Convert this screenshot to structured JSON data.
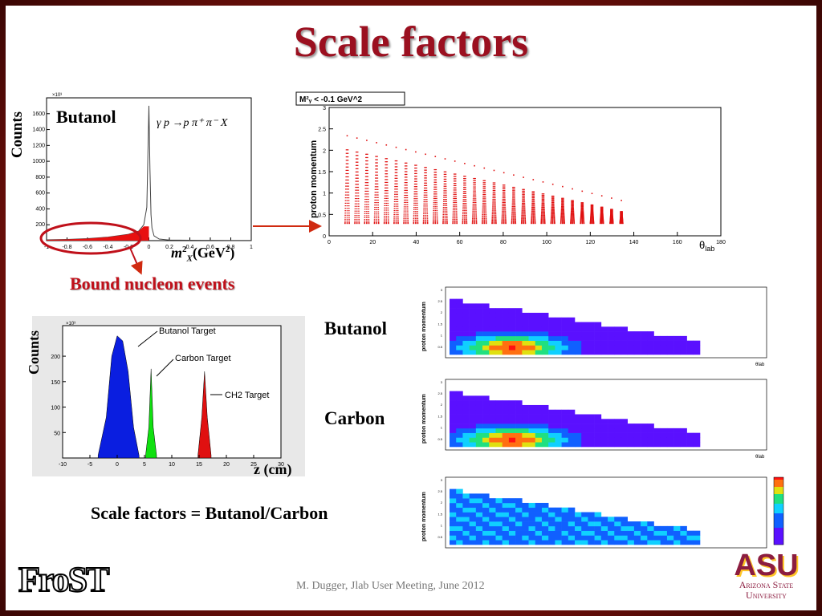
{
  "slide": {
    "title": "Scale factors",
    "footer": "M. Dugger, Jlab User Meeting, June 2012",
    "frost_logo": "FroST",
    "asu_logo": {
      "mark": "ASU",
      "line1": "Arizona State",
      "line2": "University"
    }
  },
  "missing_mass_plot": {
    "ylabel": "Counts",
    "target_label": "Butanol",
    "reaction": "γ p →p π⁺ π⁻ X",
    "xlabel_main": "m",
    "xlabel_sup": "2",
    "xlabel_sub": "X",
    "xlabel_unit": "(GeV",
    "xlabel_unit_sup": "2",
    "xlabel_unit_end": ")",
    "scale_label": "×10³",
    "annotation": "Bound nucleon events"
  },
  "momentum_theta_plot": {
    "legend": "M²ᵧ < -0.1 GeV^2",
    "ylabel": "proton momentum",
    "xlabel": "θ",
    "xlabel_sub": "lab"
  },
  "z_plot": {
    "ylabel": "Counts",
    "xlabel": "z (cm)",
    "scale_label": "×10³",
    "labels": {
      "butanol": "Butanol Target",
      "carbon": "Carbon Target",
      "ch2": "CH2 Target"
    }
  },
  "panels": {
    "butanol": "Butanol",
    "carbon": "Carbon",
    "ratio_caption": "Scale factors = Butanol/Carbon",
    "ylabel": "proton momentum",
    "xlabel": "θ",
    "xlabel_sub": "lab"
  },
  "chart_data": [
    {
      "type": "line",
      "title": "",
      "xlabel": "m²_X (GeV²)",
      "ylabel": "Counts",
      "x_ticks": [
        -1,
        -0.8,
        -0.6,
        -0.4,
        -0.2,
        0,
        0.2,
        0.4,
        0.6,
        0.8,
        1
      ],
      "y_ticks": [
        200,
        400,
        600,
        800,
        1000,
        1200,
        1400,
        1600
      ],
      "xlim": [
        -1,
        1
      ],
      "ylim": [
        0,
        1800
      ],
      "x": [
        -1.0,
        -0.8,
        -0.6,
        -0.4,
        -0.2,
        -0.1,
        -0.05,
        -0.02,
        0.0,
        0.01,
        0.02,
        0.03,
        0.05,
        0.1,
        0.2,
        0.4,
        0.6,
        0.8,
        1.0
      ],
      "values": [
        10,
        15,
        25,
        45,
        80,
        120,
        200,
        420,
        1700,
        900,
        330,
        160,
        60,
        20,
        8,
        5,
        4,
        3,
        2
      ]
    },
    {
      "type": "line",
      "title": "",
      "xlabel": "z (cm)",
      "ylabel": "Counts",
      "x_ticks": [
        -10,
        -5,
        0,
        5,
        10,
        15,
        20,
        25,
        30
      ],
      "y_ticks": [
        50,
        100,
        150,
        200
      ],
      "xlim": [
        -10,
        30
      ],
      "ylim": [
        0,
        260
      ],
      "series": [
        {
          "name": "Butanol Target",
          "x": [
            -3.5,
            -2,
            -1,
            0,
            1,
            2,
            3,
            4
          ],
          "values": [
            5,
            80,
            200,
            240,
            230,
            170,
            60,
            5
          ],
          "color": "#0a1ee0"
        },
        {
          "name": "Carbon Target",
          "x": [
            5.2,
            5.8,
            6.2,
            6.6,
            7.2
          ],
          "values": [
            5,
            60,
            175,
            60,
            5
          ],
          "color": "#10e010"
        },
        {
          "name": "CH2 Target",
          "x": [
            14.8,
            15.5,
            16,
            16.5,
            17.2
          ],
          "values": [
            5,
            80,
            170,
            80,
            5
          ],
          "color": "#e01010"
        }
      ]
    }
  ]
}
